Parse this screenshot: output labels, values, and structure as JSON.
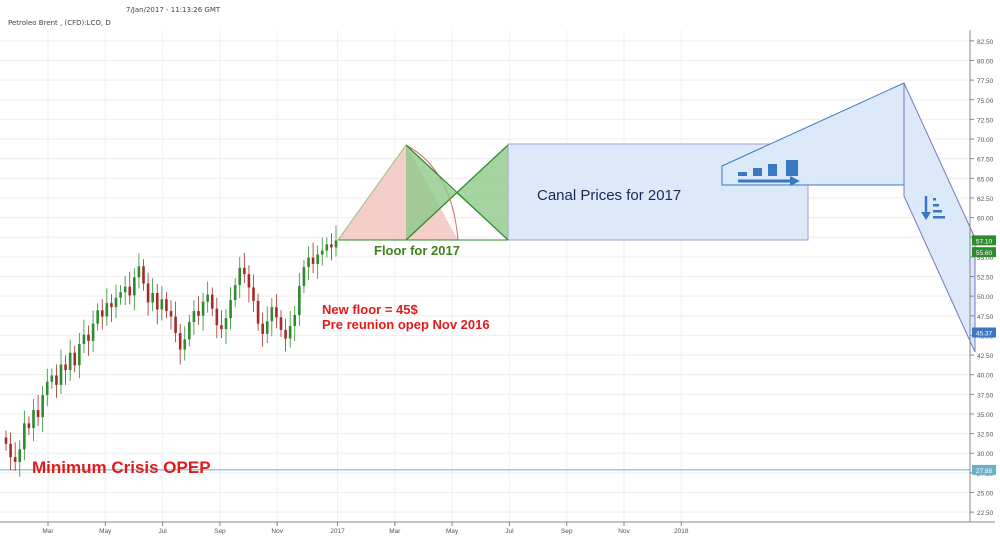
{
  "header": {
    "timestamp": "7/Jan/2017 - 11:13:26 GMT",
    "symbol": "Petroleo Brent , (CFD):LCO, D"
  },
  "annotations": {
    "crisis": "Minimum Crisis OPEP",
    "floor_2017": "Floor for 2017",
    "new_floor": "New floor = 45$",
    "pre_reunion": "Pre reunion opep Nov 2016",
    "canal": "Canal Prices for 2017"
  },
  "colors": {
    "up": "#2e8b2e",
    "down": "#a52a2a",
    "red_text": "#e01b1b",
    "green_text": "#3f7f1f",
    "navy_text": "#1a2a5a",
    "channel_fill": "#dbe9f8",
    "channel_line": "#3a78c2",
    "guide_line": "#6ab0c8"
  },
  "chart_data": {
    "type": "candlestick",
    "x_ticks": [
      "Mar",
      "May",
      "Jul",
      "Sep",
      "Nov",
      "2017",
      "Mar",
      "May",
      "Jul",
      "Sep",
      "Nov",
      "2018"
    ],
    "y_ticks": [
      "22.50",
      "25.00",
      "27.50",
      "30.00",
      "32.50",
      "35.00",
      "37.50",
      "40.00",
      "42.50",
      "45.00",
      "47.50",
      "50.00",
      "52.50",
      "55.00",
      "57.50",
      "60.00",
      "62.50",
      "65.00",
      "67.50",
      "70.00",
      "72.50",
      "75.00",
      "77.50",
      "80.00",
      "82.50"
    ],
    "ylim": [
      21.5,
      83.5
    ],
    "price_badges": [
      {
        "label": "57.10",
        "value": 57.1,
        "color": "#2e8b2e"
      },
      {
        "label": "55.60",
        "value": 55.6,
        "color": "#2e8b2e"
      },
      {
        "label": "45.37",
        "value": 45.37,
        "color": "#3a78c2"
      },
      {
        "label": "27.88",
        "value": 27.88,
        "color": "#6ab0c8"
      }
    ],
    "horizontal_line": 27.88,
    "close_series": [
      31.2,
      29.5,
      28.9,
      30.5,
      33.8,
      33.2,
      35.5,
      34.6,
      37.4,
      39.1,
      39.9,
      38.7,
      41.3,
      40.6,
      42.8,
      41.2,
      43.9,
      45.1,
      44.3,
      46.5,
      48.2,
      47.4,
      49.1,
      48.6,
      49.8,
      50.5,
      51.2,
      50.1,
      52.4,
      53.8,
      51.6,
      49.2,
      50.4,
      48.3,
      49.6,
      48.1,
      47.4,
      45.3,
      43.2,
      44.5,
      46.7,
      48.1,
      47.5,
      49.3,
      50.2,
      48.4,
      46.3,
      45.8,
      47.2,
      49.5,
      51.4,
      53.6,
      52.8,
      51.1,
      49.4,
      46.5,
      45.2,
      46.8,
      48.6,
      47.3,
      45.7,
      44.6,
      46.2,
      47.6,
      51.3,
      53.7,
      54.9,
      54.1,
      55.3,
      55.8,
      56.6,
      56.2,
      57.1
    ]
  }
}
